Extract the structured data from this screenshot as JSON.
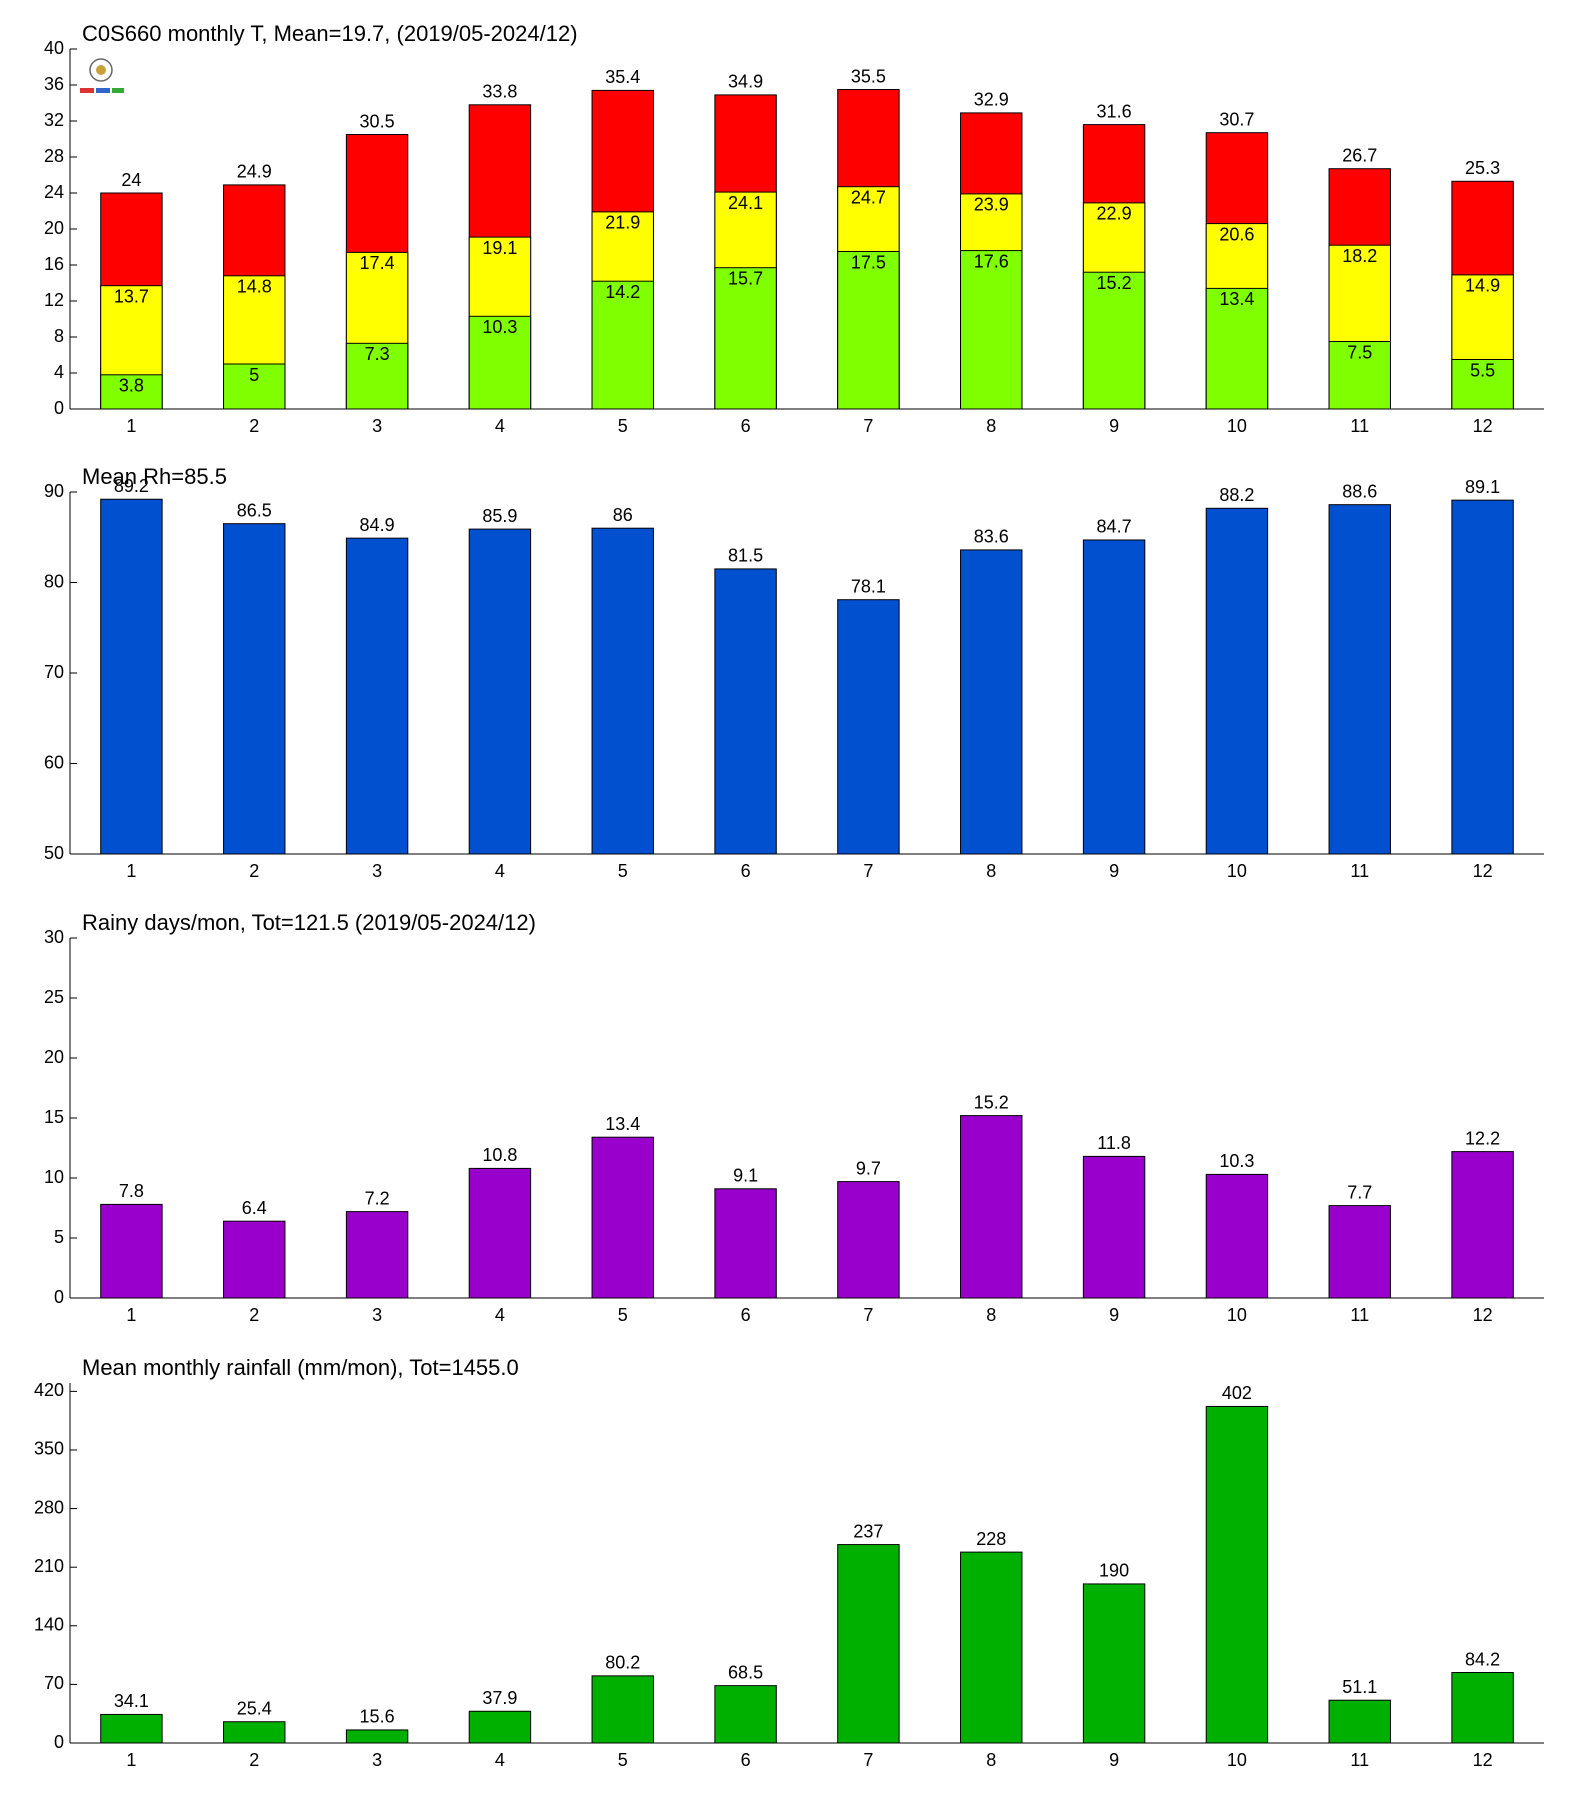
{
  "chart_data": [
    {
      "type": "bar",
      "barmode": "overlay",
      "title": "C0S660 monthly T, Mean=19.7, (2019/05-2024/12)",
      "categories": [
        "1",
        "2",
        "3",
        "4",
        "5",
        "6",
        "7",
        "8",
        "9",
        "10",
        "11",
        "12"
      ],
      "series": [
        {
          "color": "#ff0000",
          "values": [
            24,
            24.9,
            30.5,
            33.8,
            35.4,
            34.9,
            35.5,
            32.9,
            31.6,
            30.7,
            26.7,
            25.3
          ]
        },
        {
          "color": "#ffff00",
          "values": [
            13.7,
            14.8,
            17.4,
            19.1,
            21.9,
            24.1,
            24.7,
            23.9,
            22.9,
            20.6,
            18.2,
            14.9
          ]
        },
        {
          "color": "#80ff00",
          "values": [
            3.8,
            5,
            7.3,
            10.3,
            14.2,
            15.7,
            17.5,
            17.6,
            15.2,
            13.4,
            7.5,
            5.5
          ]
        }
      ],
      "ylim": [
        0,
        40
      ],
      "yticks": [
        0,
        4,
        8,
        12,
        16,
        20,
        24,
        28,
        32,
        36,
        40
      ]
    },
    {
      "type": "bar",
      "title": "Mean Rh=85.5",
      "categories": [
        "1",
        "2",
        "3",
        "4",
        "5",
        "6",
        "7",
        "8",
        "9",
        "10",
        "11",
        "12"
      ],
      "series": [
        {
          "color": "#0050d0",
          "values": [
            89.2,
            86.5,
            84.9,
            85.9,
            86,
            81.5,
            78.1,
            83.6,
            84.7,
            88.2,
            88.6,
            89.1
          ]
        }
      ],
      "ylim": [
        50,
        90
      ],
      "yticks": [
        50,
        60,
        70,
        80,
        90
      ]
    },
    {
      "type": "bar",
      "title": "Rainy days/mon, Tot=121.5 (2019/05-2024/12)",
      "categories": [
        "1",
        "2",
        "3",
        "4",
        "5",
        "6",
        "7",
        "8",
        "9",
        "10",
        "11",
        "12"
      ],
      "series": [
        {
          "color": "#9900cc",
          "values": [
            7.8,
            6.4,
            7.2,
            10.8,
            13.4,
            9.1,
            9.7,
            15.2,
            11.8,
            10.3,
            7.7,
            12.2
          ]
        }
      ],
      "ylim": [
        0,
        30
      ],
      "yticks": [
        0,
        5,
        10,
        15,
        20,
        25,
        30
      ]
    },
    {
      "type": "bar",
      "title": "Mean monthly rainfall (mm/mon), Tot=1455.0",
      "categories": [
        "1",
        "2",
        "3",
        "4",
        "5",
        "6",
        "7",
        "8",
        "9",
        "10",
        "11",
        "12"
      ],
      "series": [
        {
          "color": "#00b000",
          "values": [
            34.1,
            25.4,
            15.6,
            37.9,
            80.2,
            68.5,
            237,
            228,
            190,
            402,
            51.1,
            84.2
          ]
        }
      ],
      "ylim": [
        0,
        430
      ],
      "yticks": [
        0,
        70,
        140,
        210,
        280,
        350,
        420
      ]
    }
  ]
}
